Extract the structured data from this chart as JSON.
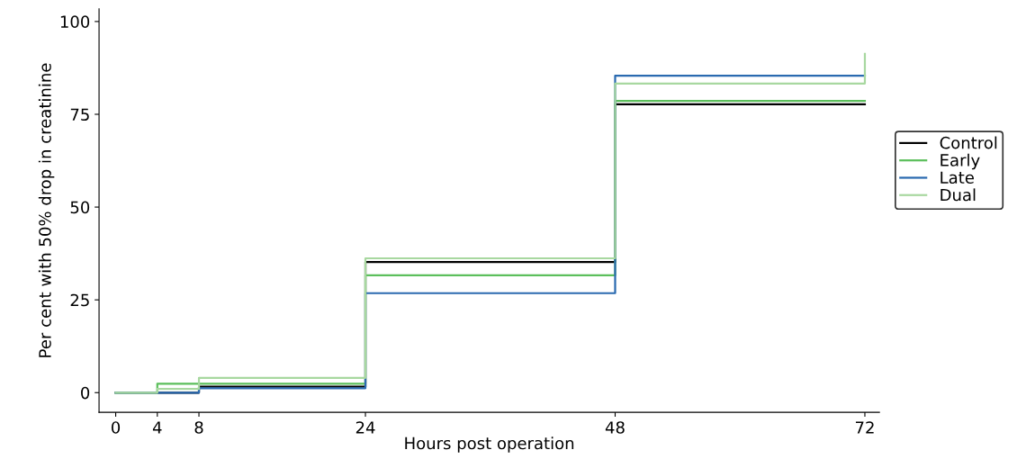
{
  "chart_data": {
    "type": "step",
    "xlabel": "Hours post operation",
    "ylabel": "Per cent with 50% drop in creatinine",
    "x": [
      0,
      4,
      8,
      24,
      48,
      72
    ],
    "series": [
      {
        "name": "Control",
        "color": "#000000",
        "values": [
          0,
          0,
          1.6,
          35.2,
          77.7,
          77.7
        ]
      },
      {
        "name": "Early",
        "color": "#5cbf5c",
        "values": [
          0,
          2.4,
          2.4,
          31.6,
          78.6,
          78.6
        ]
      },
      {
        "name": "Late",
        "color": "#2a6ab0",
        "values": [
          0,
          0,
          1.2,
          26.8,
          85.4,
          85.4
        ]
      },
      {
        "name": "Dual",
        "color": "#a8d8a0",
        "values": [
          0,
          1.0,
          4.0,
          36.2,
          83.3,
          91.3
        ]
      }
    ],
    "xlim": [
      -1.6,
      73.4
    ],
    "ylim": [
      -5.3,
      103.4
    ],
    "xticks": [
      0,
      4,
      8,
      24,
      48,
      72
    ],
    "yticks": [
      0,
      25,
      50,
      75,
      100
    ],
    "grid": false,
    "legend": "right",
    "line_style": "solid",
    "marker": "none"
  }
}
